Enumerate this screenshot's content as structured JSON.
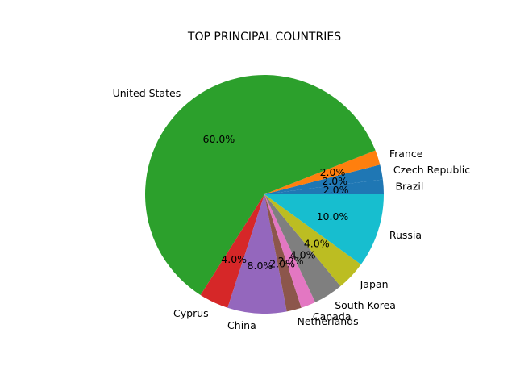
{
  "chart_data": {
    "type": "pie",
    "title": "TOP PRINCIPAL COUNTRIES",
    "start_angle_deg": 0,
    "direction": "counterclockwise",
    "slices": [
      {
        "label": "Brazil",
        "value": 2.0,
        "pct_label": "2.0%",
        "color": "#1f77b4"
      },
      {
        "label": "Czech Republic",
        "value": 2.0,
        "pct_label": "2.0%",
        "color": "#1f77b4"
      },
      {
        "label": "France",
        "value": 2.0,
        "pct_label": "2.0%",
        "color": "#ff7f0e"
      },
      {
        "label": "United States",
        "value": 60.0,
        "pct_label": "60.0%",
        "color": "#2ca02c"
      },
      {
        "label": "Cyprus",
        "value": 4.0,
        "pct_label": "4.0%",
        "color": "#d62728"
      },
      {
        "label": "China",
        "value": 8.0,
        "pct_label": "8.0%",
        "color": "#9467bd"
      },
      {
        "label": "Netherlands",
        "value": 2.0,
        "pct_label": "2.0%",
        "color": "#8c564b"
      },
      {
        "label": "Canada",
        "value": 2.0,
        "pct_label": "2.0%",
        "color": "#e377c2"
      },
      {
        "label": "South Korea",
        "value": 4.0,
        "pct_label": "4.0%",
        "color": "#7f7f7f"
      },
      {
        "label": "Japan",
        "value": 4.0,
        "pct_label": "4.0%",
        "color": "#bcbd22"
      },
      {
        "label": "Russia",
        "value": 10.0,
        "pct_label": "10.0%",
        "color": "#17becf"
      }
    ]
  }
}
